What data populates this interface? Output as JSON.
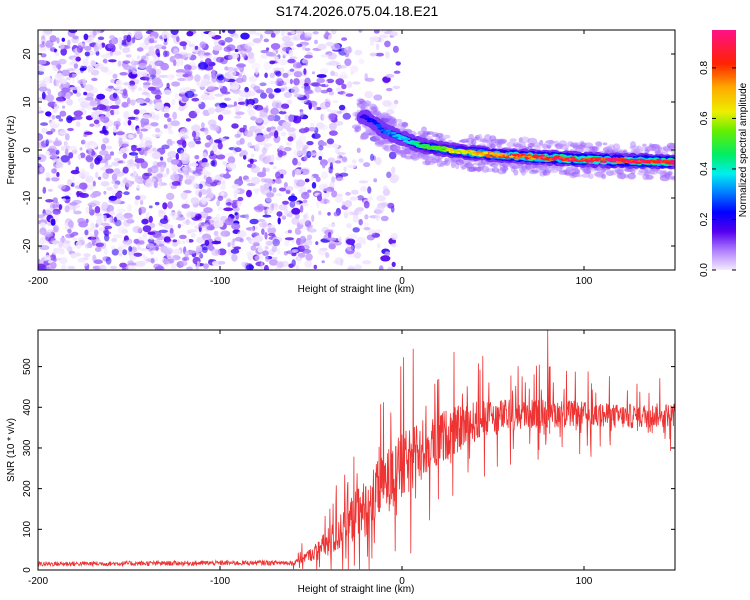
{
  "title": "S174.2026.075.04.18.E21",
  "chart_data": [
    {
      "type": "heatmap",
      "xlabel": "Height of straight line (km)",
      "ylabel": "Frequency (Hz)",
      "xlim": [
        -200,
        150
      ],
      "ylim": [
        -25,
        25
      ],
      "xticks": [
        -200,
        -100,
        0,
        100
      ],
      "yticks": [
        20,
        10,
        0,
        -10,
        -20
      ],
      "colorbar": {
        "label": "Normalized spectral amplitude",
        "range": [
          0,
          0.95
        ],
        "ticks": [
          0.0,
          0.2,
          0.4,
          0.6,
          0.8
        ]
      },
      "ridge": {
        "description_points": [
          [
            -20,
            7
          ],
          [
            -10,
            4
          ],
          [
            0,
            2.5
          ],
          [
            10,
            1
          ],
          [
            25,
            0
          ],
          [
            50,
            -1
          ],
          [
            75,
            -1.5
          ],
          [
            100,
            -2
          ],
          [
            150,
            -2.5
          ]
        ],
        "amplitude_points": [
          [
            -20,
            0.2
          ],
          [
            0,
            0.35
          ],
          [
            25,
            0.6
          ],
          [
            50,
            0.75
          ],
          [
            75,
            0.85
          ],
          [
            100,
            0.9
          ],
          [
            150,
            0.88
          ]
        ]
      },
      "noise_region_x": [
        -200,
        -20
      ]
    },
    {
      "type": "line",
      "xlabel": "Height of straight line (km)",
      "ylabel": "SNR (10 * v/v)",
      "xlim": [
        -200,
        150
      ],
      "ylim": [
        0,
        590
      ],
      "xticks": [
        -200,
        -100,
        0,
        100
      ],
      "yticks": [
        0,
        100,
        200,
        300,
        400,
        500
      ],
      "series": [
        {
          "name": "SNR",
          "color": "#ee3333",
          "envelope_points": [
            [
              -200,
              15
            ],
            [
              -60,
              18
            ],
            [
              -50,
              40
            ],
            [
              -40,
              70
            ],
            [
              -30,
              120
            ],
            [
              -20,
              160
            ],
            [
              -10,
              220
            ],
            [
              0,
              260
            ],
            [
              10,
              300
            ],
            [
              20,
              330
            ],
            [
              30,
              350
            ],
            [
              40,
              370
            ],
            [
              50,
              380
            ],
            [
              60,
              385
            ],
            [
              80,
              390
            ],
            [
              100,
              385
            ],
            [
              120,
              380
            ],
            [
              150,
              385
            ]
          ],
          "spread_points": [
            [
              -200,
              10
            ],
            [
              -60,
              10
            ],
            [
              -50,
              25
            ],
            [
              -40,
              60
            ],
            [
              -30,
              90
            ],
            [
              -20,
              110
            ],
            [
              -10,
              120
            ],
            [
              0,
              130
            ],
            [
              10,
              120
            ],
            [
              30,
              90
            ],
            [
              60,
              60
            ],
            [
              100,
              50
            ],
            [
              150,
              45
            ]
          ],
          "peak": [
            80,
            590
          ]
        }
      ]
    }
  ]
}
